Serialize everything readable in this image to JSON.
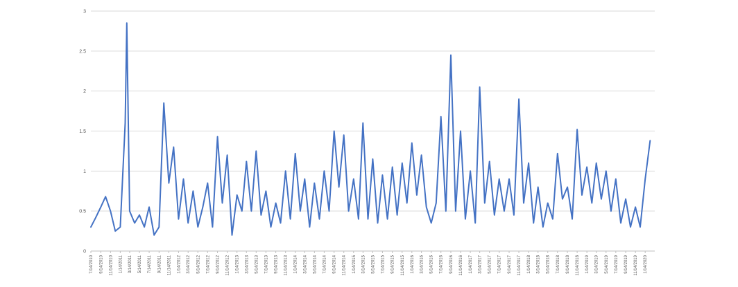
{
  "chart_data": {
    "type": "line",
    "title": "",
    "xlabel": "",
    "ylabel": "",
    "ylim": [
      0,
      3
    ],
    "y_ticks": [
      "0",
      "0.5",
      "1",
      "1.5",
      "2",
      "2.5",
      "3"
    ],
    "x_tick_labels": [
      "7/14/2010",
      "9/14/2010",
      "11/14/2010",
      "1/14/2011",
      "3/14/2011",
      "5/14/2011",
      "7/14/2011",
      "9/14/2011",
      "11/14/2011",
      "1/14/2012",
      "3/14/2012",
      "5/14/2012",
      "7/14/2012",
      "9/14/2012",
      "11/14/2012",
      "1/14/2013",
      "3/14/2013",
      "5/14/2013",
      "7/14/2013",
      "9/14/2013",
      "11/14/2013",
      "1/14/2014",
      "3/14/2014",
      "5/14/2014",
      "7/14/2014",
      "9/14/2014",
      "11/14/2014",
      "1/14/2015",
      "3/14/2015",
      "5/14/2015",
      "7/14/2015",
      "9/14/2015",
      "11/14/2015",
      "1/14/2016",
      "3/14/2016",
      "5/14/2016",
      "7/14/2016",
      "9/14/2016",
      "11/14/2016",
      "1/14/2017",
      "3/14/2017",
      "5/14/2017",
      "7/14/2017",
      "9/14/2017",
      "11/14/2017",
      "1/14/2018",
      "3/14/2018",
      "5/14/2018",
      "7/14/2018",
      "9/14/2018",
      "11/14/2018",
      "1/14/2019",
      "3/14/2019",
      "5/14/2019",
      "7/14/2019",
      "9/14/2019",
      "11/14/2019",
      "1/14/2020"
    ],
    "grid": "horizontal",
    "legend": "none",
    "line_color": "#4472c4",
    "series": [
      {
        "x": [
          "7/14/2010",
          "8/14/2010",
          "9/14/2010",
          "10/14/2010",
          "11/14/2010",
          "12/14/2010",
          "1/14/2011",
          "2/14/2011",
          "2/24/2011",
          "3/14/2011",
          "4/14/2011",
          "5/14/2011",
          "6/14/2011",
          "7/14/2011",
          "8/14/2011",
          "9/14/2011",
          "10/14/2011",
          "11/14/2011",
          "12/14/2011",
          "1/14/2012",
          "2/14/2012",
          "3/14/2012",
          "4/14/2012",
          "5/14/2012",
          "6/14/2012",
          "7/14/2012",
          "8/14/2012",
          "9/14/2012",
          "10/14/2012",
          "11/14/2012",
          "12/14/2012",
          "1/14/2013",
          "2/14/2013",
          "3/14/2013",
          "4/14/2013",
          "5/14/2013",
          "6/14/2013",
          "7/14/2013",
          "8/14/2013",
          "9/14/2013",
          "10/14/2013",
          "11/14/2013",
          "12/14/2013",
          "1/14/2014",
          "2/14/2014",
          "3/14/2014",
          "4/14/2014",
          "5/14/2014",
          "6/14/2014",
          "7/14/2014",
          "8/14/2014",
          "9/14/2014",
          "10/14/2014",
          "11/14/2014",
          "12/14/2014",
          "1/14/2015",
          "2/14/2015",
          "3/14/2015",
          "4/14/2015",
          "5/14/2015",
          "6/14/2015",
          "7/14/2015",
          "8/14/2015",
          "9/14/2015",
          "10/14/2015",
          "11/14/2015",
          "12/14/2015",
          "1/14/2016",
          "2/14/2016",
          "3/14/2016",
          "4/14/2016",
          "5/14/2016",
          "6/14/2016",
          "7/14/2016",
          "8/14/2016",
          "9/14/2016",
          "10/14/2016",
          "11/14/2016",
          "12/14/2016",
          "1/14/2017",
          "2/14/2017",
          "3/14/2017",
          "4/14/2017",
          "5/14/2017",
          "6/14/2017",
          "7/14/2017",
          "8/14/2017",
          "9/14/2017",
          "10/14/2017",
          "11/14/2017",
          "12/14/2017",
          "1/14/2018",
          "2/14/2018",
          "3/14/2018",
          "4/14/2018",
          "5/14/2018",
          "6/14/2018",
          "7/14/2018",
          "8/14/2018",
          "9/14/2018",
          "10/14/2018",
          "11/14/2018",
          "12/14/2018",
          "1/14/2019",
          "2/14/2019",
          "3/14/2019",
          "4/14/2019",
          "5/14/2019",
          "6/14/2019",
          "7/14/2019",
          "8/14/2019",
          "9/14/2019",
          "10/14/2019",
          "11/14/2019",
          "12/14/2019",
          "1/14/2020",
          "2/14/2020"
        ],
        "values": [
          0.3,
          0.42,
          0.55,
          0.68,
          0.5,
          0.25,
          0.3,
          1.6,
          2.85,
          0.5,
          0.35,
          0.45,
          0.3,
          0.55,
          0.2,
          0.3,
          1.85,
          0.85,
          1.3,
          0.4,
          0.9,
          0.35,
          0.75,
          0.3,
          0.55,
          0.85,
          0.3,
          1.43,
          0.6,
          1.2,
          0.2,
          0.7,
          0.5,
          1.12,
          0.5,
          1.25,
          0.45,
          0.75,
          0.3,
          0.6,
          0.35,
          1.0,
          0.4,
          1.22,
          0.5,
          0.9,
          0.3,
          0.85,
          0.4,
          1.0,
          0.5,
          1.5,
          0.8,
          1.45,
          0.5,
          0.9,
          0.4,
          1.6,
          0.4,
          1.15,
          0.35,
          0.95,
          0.4,
          1.05,
          0.45,
          1.1,
          0.6,
          1.35,
          0.7,
          1.2,
          0.55,
          0.35,
          0.6,
          1.68,
          0.5,
          2.45,
          0.5,
          1.5,
          0.4,
          1.0,
          0.35,
          2.05,
          0.6,
          1.12,
          0.45,
          0.9,
          0.5,
          0.9,
          0.45,
          1.9,
          0.6,
          1.1,
          0.35,
          0.8,
          0.3,
          0.6,
          0.4,
          1.22,
          0.65,
          0.8,
          0.4,
          1.52,
          0.7,
          1.05,
          0.6,
          1.1,
          0.65,
          1.0,
          0.5,
          0.9,
          0.35,
          0.65,
          0.3,
          0.55,
          0.3,
          0.9,
          1.38
        ]
      }
    ]
  }
}
